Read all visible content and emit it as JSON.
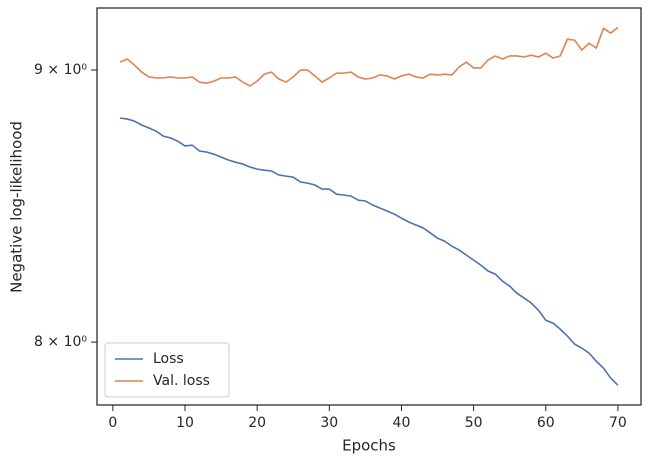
{
  "chart_data": {
    "type": "line",
    "xlabel": "Epochs",
    "ylabel": "Negative log-likelihood",
    "x": [
      1,
      2,
      3,
      4,
      5,
      6,
      7,
      8,
      9,
      10,
      11,
      12,
      13,
      14,
      15,
      16,
      17,
      18,
      19,
      20,
      21,
      22,
      23,
      24,
      25,
      26,
      27,
      28,
      29,
      30,
      31,
      32,
      33,
      34,
      35,
      36,
      37,
      38,
      39,
      40,
      41,
      42,
      43,
      44,
      45,
      46,
      47,
      48,
      49,
      50,
      51,
      52,
      53,
      54,
      55,
      56,
      57,
      58,
      59,
      60,
      61,
      62,
      63,
      64,
      65,
      66,
      67,
      68,
      69,
      70
    ],
    "series": [
      {
        "name": "Loss",
        "color": "#4c72b0",
        "values": [
          8.815,
          8.811,
          8.803,
          8.788,
          8.777,
          8.765,
          8.746,
          8.739,
          8.727,
          8.709,
          8.712,
          8.69,
          8.686,
          8.678,
          8.667,
          8.656,
          8.648,
          8.641,
          8.63,
          8.622,
          8.618,
          8.615,
          8.6,
          8.596,
          8.592,
          8.574,
          8.57,
          8.563,
          8.548,
          8.548,
          8.529,
          8.526,
          8.522,
          8.507,
          8.504,
          8.489,
          8.478,
          8.467,
          8.456,
          8.441,
          8.427,
          8.416,
          8.405,
          8.387,
          8.368,
          8.357,
          8.339,
          8.325,
          8.307,
          8.289,
          8.271,
          8.25,
          8.239,
          8.214,
          8.196,
          8.171,
          8.154,
          8.136,
          8.111,
          8.076,
          8.066,
          8.045,
          8.021,
          7.993,
          7.979,
          7.962,
          7.934,
          7.91,
          7.876,
          7.852
        ]
      },
      {
        "name": "Val. loss",
        "color": "#dd8452",
        "values": [
          9.031,
          9.043,
          9.019,
          8.992,
          8.973,
          8.969,
          8.969,
          8.973,
          8.969,
          8.969,
          8.973,
          8.953,
          8.949,
          8.957,
          8.969,
          8.969,
          8.973,
          8.953,
          8.938,
          8.957,
          8.984,
          8.992,
          8.965,
          8.953,
          8.973,
          9.0,
          9.0,
          8.977,
          8.953,
          8.969,
          8.988,
          8.988,
          8.992,
          8.973,
          8.965,
          8.969,
          8.981,
          8.977,
          8.965,
          8.977,
          8.984,
          8.973,
          8.969,
          8.984,
          8.981,
          8.984,
          8.981,
          9.012,
          9.031,
          9.008,
          9.008,
          9.039,
          9.055,
          9.043,
          9.055,
          9.055,
          9.051,
          9.058,
          9.051,
          9.066,
          9.047,
          9.055,
          9.121,
          9.117,
          9.078,
          9.105,
          9.086,
          9.164,
          9.145,
          9.168
        ]
      }
    ],
    "xlim": [
      -2.2,
      73.2
    ],
    "xticks": [
      0,
      10,
      20,
      30,
      40,
      50,
      60,
      70
    ],
    "ylim": [
      7.785,
      9.245
    ],
    "yscale": "log",
    "yticks": [
      {
        "value": 8,
        "label": "8 × 10⁰"
      },
      {
        "value": 9,
        "label": "9 × 10⁰"
      }
    ],
    "legend": "lower left"
  }
}
